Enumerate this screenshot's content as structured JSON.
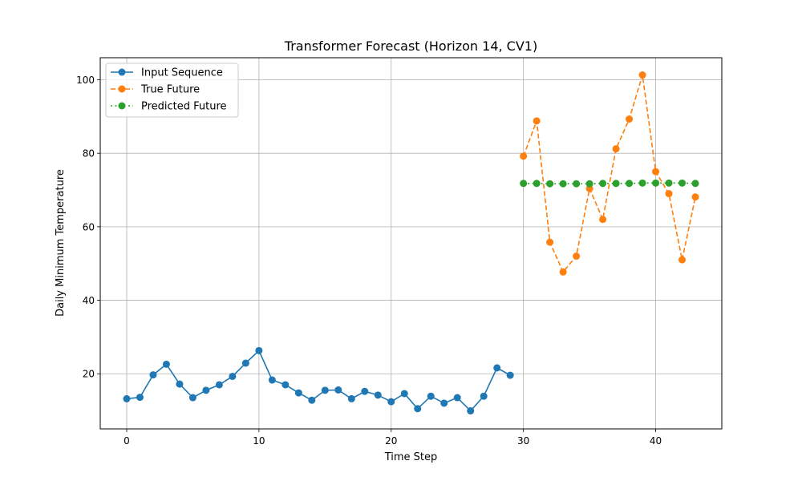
{
  "chart_data": {
    "type": "line",
    "title": "Transformer Forecast (Horizon 14, CV1)",
    "xlabel": "Time Step",
    "ylabel": "Daily Minimum Temperature",
    "xlim": [
      -2,
      45
    ],
    "ylim": [
      5,
      106
    ],
    "xticks": [
      0,
      10,
      20,
      30,
      40
    ],
    "yticks": [
      20,
      40,
      60,
      80,
      100
    ],
    "grid": true,
    "legend_position": "top-left",
    "series": [
      {
        "name": "Input Sequence",
        "color": "#1f77b4",
        "linestyle": "solid",
        "x": [
          0,
          1,
          2,
          3,
          4,
          5,
          6,
          7,
          8,
          9,
          10,
          11,
          12,
          13,
          14,
          15,
          16,
          17,
          18,
          19,
          20,
          21,
          22,
          23,
          24,
          25,
          26,
          27,
          28,
          29
        ],
        "values": [
          13.2,
          13.6,
          19.7,
          22.6,
          17.2,
          13.5,
          15.5,
          17.0,
          19.3,
          22.9,
          26.3,
          18.3,
          17.0,
          14.8,
          12.8,
          15.5,
          15.6,
          13.2,
          15.2,
          14.2,
          12.4,
          14.6,
          10.5,
          13.9,
          12.0,
          13.5,
          9.9,
          13.9,
          21.6,
          19.6
        ]
      },
      {
        "name": "True Future",
        "color": "#ff7f0e",
        "linestyle": "dashed",
        "x": [
          30,
          31,
          32,
          33,
          34,
          35,
          36,
          37,
          38,
          39,
          40,
          41,
          42,
          43
        ],
        "values": [
          79.2,
          88.8,
          55.8,
          47.7,
          52.0,
          70.4,
          62.0,
          81.2,
          89.3,
          101.3,
          75.0,
          69.0,
          51.0,
          68.1
        ]
      },
      {
        "name": "Predicted Future",
        "color": "#2ca02c",
        "linestyle": "dotted",
        "x": [
          30,
          31,
          32,
          33,
          34,
          35,
          36,
          37,
          38,
          39,
          40,
          41,
          42,
          43
        ],
        "values": [
          71.8,
          71.8,
          71.7,
          71.7,
          71.7,
          71.7,
          71.8,
          71.8,
          71.8,
          71.9,
          71.9,
          71.9,
          71.9,
          71.8
        ]
      }
    ]
  }
}
